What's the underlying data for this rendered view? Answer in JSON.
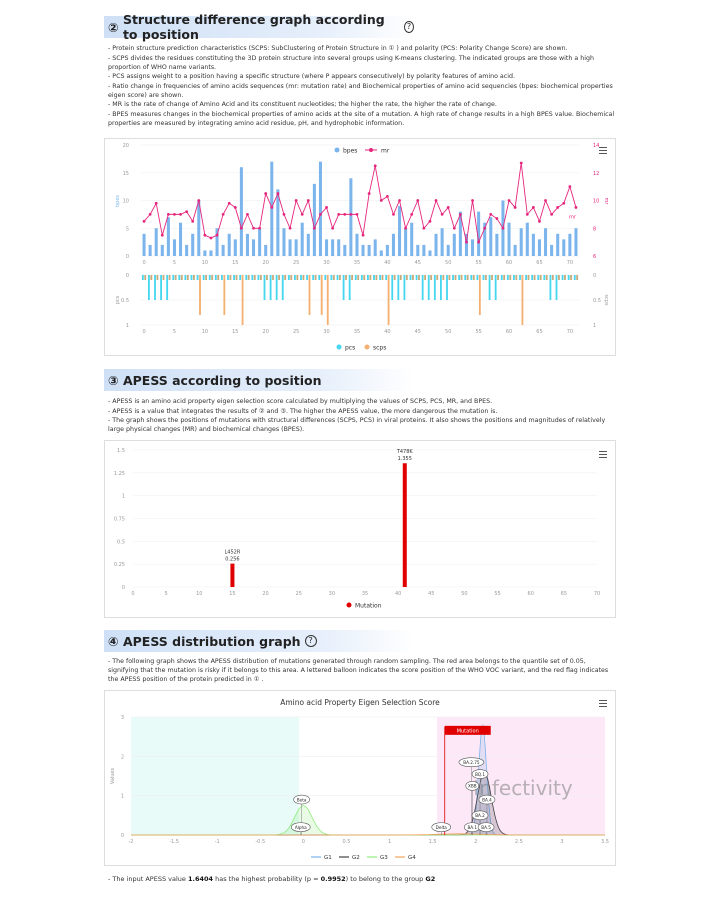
{
  "sections": {
    "s2": {
      "num": "②",
      "title": "Structure difference graph according to position",
      "help": "?"
    },
    "s3": {
      "num": "③",
      "title": "APESS according to position"
    },
    "s4": {
      "num": "④",
      "title": "APESS distribution graph",
      "help": "?"
    }
  },
  "s2_bullets": [
    "- Protein structure prediction characteristics (SCPS: SubClustering of Protein Structure in ① ) and polarity (PCS: Polarity Change Score) are shown.",
    "- SCPS divides the residues constituting the 3D protein structure into several groups using K-means clustering. The indicated groups are those with a high proportion of WHO name variants.",
    "- PCS assigns weight to a position having a specific structure (where P appears consecutively) by polarity features of amino acid.",
    "- Ratio change in frequencies of amino acids sequences (mr: mutation rate) and Biochemical properties of amino acid sequencies (bpes: biochemical properties eigen score) are shown.",
    "- MR is the rate of change of Amino Acid and its constituent nucleotides; the higher the rate, the higher the rate of change.",
    "- BPES measures changes in the biochemical properties of amino acids at the site of a mutation. A high rate of change results in a high BPES value. Biochemical properties are measured by integrating amino acid residue, pH, and hydrophobic information."
  ],
  "s3_bullets": [
    "- APESS is an amino acid property eigen selection score calculated by multiplying the values of SCPS, PCS, MR, and BPES.",
    "- APESS is a value that integrates the results of ② and ③. The higher the APESS value, the more dangerous the mutation is.",
    "- The graph shows the positions of mutations with structural differences (SCPS, PCS) in viral proteins. It also shows the positions and magnitudes of relatively large physical changes (MR) and biochemical changes (BPES)."
  ],
  "s4_bullets": [
    "- The following graph shows the APESS distribution of mutations generated through random sampling. The red area belongs to the quantile set of 0.05, signifying that the mutation is risky if it belongs to this area. A lettered balloon indicates the score position of the WHO VOC variant, and the red flag indicates the APESS position of the protein predicted in ① ."
  ],
  "footer": {
    "prefix": "- The input APESS value ",
    "value": "1.6404",
    "mid": " has the highest probability (p = ",
    "p": "0.9952",
    "suffix": ") to belong to the group ",
    "group": "G2"
  },
  "colors": {
    "bpes": "#7cb5ec",
    "mr": "#e6267d",
    "pcs": "#45d6f0",
    "scps": "#f4b071",
    "scps_small": "#c8ab7a",
    "mutation": "#e00000"
  },
  "chart_data": [
    {
      "type": "bar",
      "title": "",
      "x_ticks": [
        0,
        5,
        10,
        15,
        20,
        25,
        30,
        35,
        40,
        45,
        50,
        55,
        60,
        65,
        70
      ],
      "bpes": {
        "name": "bpes",
        "ylabel": "bpes",
        "ylim": [
          0,
          20
        ],
        "y_ticks": [
          0,
          5,
          10,
          15,
          20
        ],
        "values": [
          4,
          2,
          5,
          2,
          7,
          3,
          6,
          2,
          4,
          10,
          1,
          1,
          5,
          2,
          4,
          3,
          16,
          4,
          3,
          5,
          2,
          17,
          12,
          5,
          3,
          3,
          6,
          4,
          13,
          17,
          3,
          3,
          3,
          2,
          14,
          4,
          2,
          2,
          3,
          1,
          2,
          4,
          9,
          5,
          6,
          2,
          2,
          1,
          4,
          5,
          2,
          4,
          8,
          4,
          3,
          8,
          6,
          7,
          4,
          10,
          6,
          2,
          5,
          6,
          4,
          3,
          5,
          2,
          4,
          3,
          4,
          5
        ]
      },
      "mr": {
        "name": "mr",
        "ylabel": "mr",
        "ylim": [
          6,
          14
        ],
        "y_ticks": [
          6,
          8,
          10,
          12,
          14
        ],
        "values": [
          8.5,
          9,
          9.8,
          7.5,
          9,
          9,
          9,
          9.2,
          8.5,
          10,
          7.5,
          7.3,
          7.5,
          9,
          9.8,
          9.5,
          8,
          9,
          8,
          8,
          10.5,
          9.5,
          10.5,
          9,
          8,
          10,
          9,
          10,
          8,
          9,
          9.5,
          8,
          9,
          9,
          9,
          9,
          7.5,
          10.5,
          12.5,
          10,
          10.3,
          9,
          10,
          8,
          9,
          10,
          8,
          8.5,
          10,
          9,
          9.5,
          8,
          9,
          7,
          10,
          7,
          8,
          9,
          8.7,
          8,
          10,
          9.5,
          12.7,
          9,
          9.5,
          8.5,
          10,
          9,
          9.5,
          9.8,
          11,
          9.5
        ]
      },
      "mr_label": "mr"
    },
    {
      "type": "bar",
      "x_ticks": [
        0,
        5,
        10,
        15,
        20,
        25,
        30,
        35,
        40,
        45,
        50,
        55,
        60,
        65,
        70
      ],
      "pcs": {
        "name": "pcs",
        "ylabel": "pcs",
        "ylim": [
          0,
          1
        ],
        "y_ticks": [
          0,
          0.5,
          1
        ],
        "values": [
          0.1,
          0.5,
          0.5,
          0.5,
          0.5,
          0.1,
          0.1,
          0.1,
          0.1,
          0.1,
          0.1,
          0.1,
          0.1,
          0.1,
          0.1,
          0.1,
          0.1,
          0.1,
          0.1,
          0.1,
          0.5,
          0.5,
          0.5,
          0.5,
          0.1,
          0.1,
          0.1,
          0.1,
          0.1,
          0.1,
          0.1,
          0.1,
          0.1,
          0.5,
          0.5,
          0.1,
          0.1,
          0.1,
          0.1,
          0.1,
          0.1,
          0.5,
          0.5,
          0.5,
          0.1,
          0.1,
          0.5,
          0.5,
          0.5,
          0.5,
          0.5,
          0.1,
          0.1,
          0.1,
          0.1,
          0.1,
          0.1,
          0.5,
          0.5,
          0.1,
          0.1,
          0.1,
          0.1,
          0.1,
          0.1,
          0.1,
          0.1,
          0.5,
          0.5,
          0.1,
          0.1,
          0.1
        ]
      },
      "scps": {
        "name": "scps",
        "ylabel": "scps",
        "ylim": [
          0,
          1
        ],
        "y_ticks": [
          0,
          0.5,
          1
        ],
        "values": [
          0.1,
          0.1,
          0.1,
          0.1,
          0.1,
          0.1,
          0.1,
          0.1,
          0.1,
          0.8,
          0.1,
          0.1,
          0.1,
          0.8,
          0.1,
          0.1,
          1,
          0.1,
          0.1,
          0.1,
          0.1,
          0.1,
          0.1,
          0.1,
          0.1,
          0.1,
          0.1,
          0.8,
          0.1,
          0.8,
          1,
          0.1,
          0.1,
          0.1,
          0.1,
          0.1,
          0.1,
          0.1,
          0.1,
          0.1,
          1,
          0.1,
          0.1,
          0.1,
          0.1,
          0.1,
          0.1,
          0.1,
          0.1,
          0.1,
          0.1,
          0.1,
          0.1,
          0.1,
          0.1,
          0.8,
          0.1,
          0.1,
          0.1,
          0.1,
          0.1,
          0.1,
          1,
          0.1,
          0.1,
          0.1,
          0.1,
          0.1,
          0.1,
          0.1,
          0.1,
          0.1
        ]
      }
    },
    {
      "type": "bar",
      "series": [
        {
          "name": "Mutation",
          "values": [
            0.256,
            1.355
          ]
        }
      ],
      "x": [
        15,
        41
      ],
      "data_labels": [
        {
          "name": "L452R",
          "value": "0.256"
        },
        {
          "name": "T478K",
          "value": "1.355"
        }
      ],
      "xlim": [
        0,
        70
      ],
      "x_ticks": [
        0,
        5,
        10,
        15,
        20,
        25,
        30,
        35,
        40,
        45,
        50,
        55,
        60,
        65,
        70
      ],
      "ylim": [
        0,
        1.5
      ],
      "y_ticks": [
        "0",
        "0.25",
        "0.5",
        "0.75",
        "1",
        "1.25",
        "1.5"
      ]
    },
    {
      "type": "area",
      "title": "Amino acid Property Eigen Selection Score",
      "ylabel": "Values",
      "xlim": [
        -2,
        3.5
      ],
      "x_ticks": [
        "-2",
        "-1.5",
        "-1",
        "-0.5",
        "0",
        "0.5",
        "1",
        "1.5",
        "2",
        "2.5",
        "3",
        "3.5"
      ],
      "ylim": [
        0,
        3
      ],
      "y_ticks": [
        "0",
        "1",
        "2",
        "3"
      ],
      "series": [
        {
          "name": "G1",
          "color": "#7cb5ec",
          "mean": 2.08,
          "sd": 0.045,
          "peak": 2.8
        },
        {
          "name": "G2",
          "color": "#434348",
          "mean": 2.1,
          "sd": 0.08,
          "peak": 1.6
        },
        {
          "name": "G3",
          "color": "#90ed7d",
          "mean": 0.0,
          "sd": 0.1,
          "peak": 0.75
        },
        {
          "name": "G4",
          "color": "#f7a35c",
          "mean": 1.8,
          "sd": 0.25,
          "peak": 0.03
        }
      ],
      "safe_band": [
        -2,
        -0.05
      ],
      "risk_band": [
        1.55,
        3.5
      ],
      "mutation_flag": {
        "label": "Mutation",
        "x": 1.6404,
        "y": 2.75
      },
      "balloons": [
        {
          "label": "BA.2.75",
          "x": 1.95,
          "y": 1.85
        },
        {
          "label": "BQ.1",
          "x": 2.05,
          "y": 1.55
        },
        {
          "label": "XBB",
          "x": 1.96,
          "y": 1.25
        },
        {
          "label": "BA.4",
          "x": 2.13,
          "y": 0.9
        },
        {
          "label": "BA.2",
          "x": 2.05,
          "y": 0.5
        },
        {
          "label": "BA.1",
          "x": 1.96,
          "y": 0.2
        },
        {
          "label": "BA.5",
          "x": 2.12,
          "y": 0.2
        },
        {
          "label": "Delta",
          "x": 1.6,
          "y": 0.2
        },
        {
          "label": "Beta",
          "x": -0.02,
          "y": 0.9
        },
        {
          "label": "Alpha",
          "x": -0.03,
          "y": 0.2
        }
      ],
      "watermark": "Infectivity"
    }
  ]
}
